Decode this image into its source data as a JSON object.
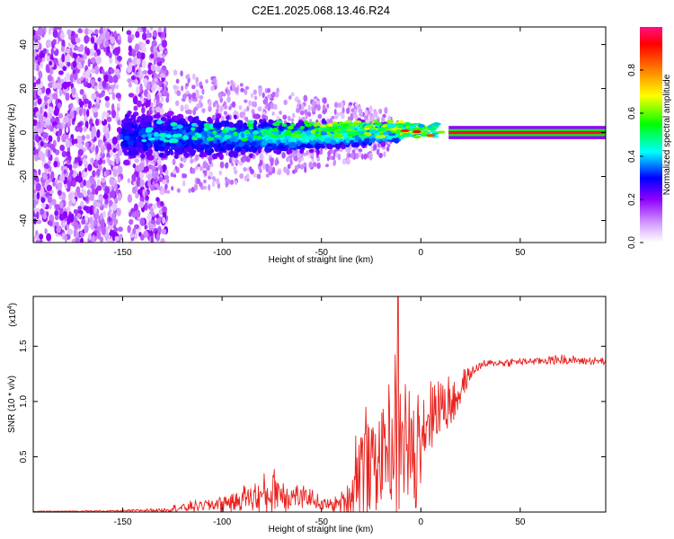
{
  "chart_data": [
    {
      "type": "heatmap",
      "title": "C2E1.2025.068.13.46.R24",
      "xlabel": "Height of straight line (km)",
      "ylabel": "Frequency (Hz)",
      "xlim": [
        -195,
        93
      ],
      "ylim": [
        -50,
        48
      ],
      "xticks": [
        -150,
        -100,
        -50,
        0,
        50
      ],
      "yticks": [
        -40,
        -20,
        0,
        20,
        40
      ],
      "colorbar": {
        "label": "Normalized spectral amplitude",
        "range": [
          0,
          1
        ],
        "ticks": [
          0.0,
          0.2,
          0.4,
          0.6,
          0.8
        ],
        "tick_labels": [
          "0.0",
          "0.2",
          "0.4",
          "0.6",
          "0.8"
        ],
        "colors": [
          "#ffffff",
          "#d9a8ff",
          "#8f00ff",
          "#0000ff",
          "#00ffff",
          "#00ff00",
          "#ffff00",
          "#ff8000",
          "#ff0000",
          "#ff1080"
        ]
      },
      "features": [
        {
          "name": "scattered noise",
          "x_range": [
            -195,
            -128
          ],
          "freq_range": [
            -50,
            48
          ],
          "amplitude": 0.05
        },
        {
          "name": "widening band",
          "x_range": [
            -150,
            -20
          ],
          "freq_halfwidth_range": [
            20,
            5
          ],
          "amplitude": 0.25
        },
        {
          "name": "concentrated band",
          "x_range": [
            -50,
            10
          ],
          "center_freq": 2,
          "amplitude": 0.6
        },
        {
          "name": "steady tone",
          "x_range": [
            15,
            93
          ],
          "center_freq": 0,
          "amplitude": 1.0
        }
      ]
    },
    {
      "type": "line",
      "xlabel": "Height of straight line (km)",
      "ylabel": "SNR (10 * v/v)",
      "y_multiplier_label": "(x10",
      "y_multiplier_exp": "4",
      "xlim": [
        -195,
        93
      ],
      "ylim": [
        0,
        1.95
      ],
      "xticks": [
        -150,
        -100,
        -50,
        0,
        50
      ],
      "yticks": [
        0.5,
        1.0,
        1.5
      ],
      "ytick_labels": [
        "0.5",
        "1.0",
        "1.5"
      ],
      "series": [
        {
          "name": "SNR",
          "color": "#e8231f",
          "envelope": {
            "x": [
              -195,
              -150,
              -130,
              -120,
              -110,
              -100,
              -95,
              -90,
              -85,
              -80,
              -75,
              -72,
              -70,
              -65,
              -60,
              -55,
              -50,
              -45,
              -40,
              -35,
              -32,
              -28,
              -25,
              -20,
              -15,
              -12,
              -10,
              -8,
              -5,
              -2,
              0,
              5,
              10,
              15,
              20,
              25,
              30,
              40,
              50,
              60,
              70,
              80,
              93
            ],
            "base": [
              0.005,
              0.01,
              0.02,
              0.04,
              0.06,
              0.08,
              0.1,
              0.12,
              0.14,
              0.15,
              0.17,
              0.2,
              0.17,
              0.14,
              0.13,
              0.12,
              0.07,
              0.06,
              0.08,
              0.15,
              0.4,
              0.5,
              0.45,
              0.55,
              0.6,
              0.7,
              0.55,
              0.7,
              0.5,
              0.75,
              0.8,
              0.9,
              0.95,
              1.0,
              1.1,
              1.25,
              1.33,
              1.35,
              1.36,
              1.37,
              1.38,
              1.37,
              1.36
            ],
            "spread": [
              0.005,
              0.01,
              0.02,
              0.05,
              0.06,
              0.09,
              0.1,
              0.12,
              0.16,
              0.2,
              0.22,
              0.3,
              0.2,
              0.15,
              0.12,
              0.1,
              0.06,
              0.06,
              0.1,
              0.3,
              0.5,
              0.6,
              0.5,
              0.6,
              0.7,
              0.9,
              0.6,
              0.7,
              0.6,
              0.5,
              0.55,
              0.4,
              0.35,
              0.25,
              0.2,
              0.06,
              0.04,
              0.04,
              0.04,
              0.04,
              0.05,
              0.04,
              0.04
            ]
          },
          "peak": {
            "x": -11.5,
            "y": 1.95
          }
        }
      ]
    }
  ]
}
